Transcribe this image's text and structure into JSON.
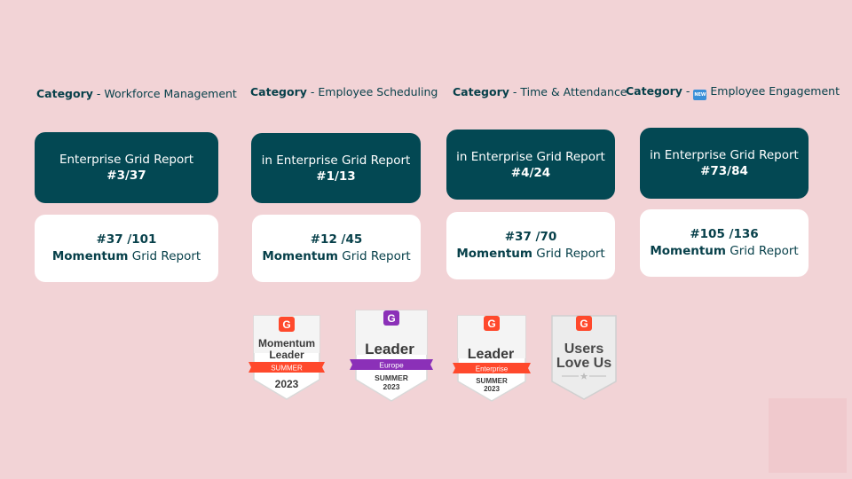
{
  "categories": [
    {
      "label": "Category",
      "separator": " - ",
      "name": "Workforce Management",
      "enterprise": {
        "prefix": "",
        "text": "Enterprise Grid Report",
        "rank": "#3/37"
      },
      "momentum": {
        "rank": "#37 /101",
        "bold": "Momentum",
        "rest": " Grid Report"
      }
    },
    {
      "label": "Category",
      "separator": " - ",
      "name": "Employee Scheduling",
      "enterprise": {
        "text": "in Enterprise Grid Report",
        "rank": "#1/13"
      },
      "momentum": {
        "rank": "#12 /45",
        "bold": "Momentum",
        "rest": " Grid Report"
      }
    },
    {
      "label": "Category",
      "separator": " - ",
      "name": "Time & Attendance",
      "enterprise": {
        "text": "in Enterprise Grid Report",
        "rank": "#4/24"
      },
      "momentum": {
        "rank": "#37 /70",
        "bold": "Momentum",
        "rest": " Grid Report"
      }
    },
    {
      "label": "Category",
      "separator": " - ",
      "icon": "new-icon",
      "icon_text": "NEW",
      "name": "Employee Engagement",
      "enterprise": {
        "text": "in Enterprise Grid Report",
        "rank": "#73/84"
      },
      "momentum": {
        "rank": "#105 /136",
        "bold": "Momentum",
        "rest": " Grid Report"
      }
    }
  ],
  "badges": [
    {
      "logo": "G",
      "line1": "Momentum",
      "line2": "Leader",
      "ribbon": "SUMMER",
      "year": "2023",
      "ribbon_color": "#ff492c"
    },
    {
      "logo": "G",
      "line1": "Leader",
      "ribbon": "Europe",
      "season": "SUMMER",
      "year": "2023",
      "ribbon_color": "#8b30b8"
    },
    {
      "logo": "G",
      "line1": "Leader",
      "ribbon": "Enterprise",
      "season": "SUMMER",
      "year": "2023",
      "ribbon_color": "#ff492c"
    },
    {
      "logo": "G",
      "line1": "Users",
      "line2": "Love Us"
    }
  ],
  "colors": {
    "background": "#f2d3d6",
    "card_dark": "#034853",
    "card_light": "#ffffff",
    "text": "#07404a",
    "g2_red": "#ff492c",
    "g2_purple": "#8b30b8"
  }
}
